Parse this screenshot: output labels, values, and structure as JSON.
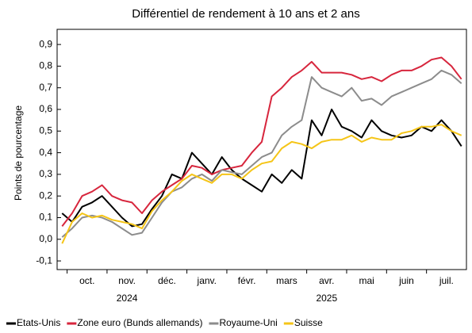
{
  "chart_data": {
    "type": "line",
    "title": "Différentiel de rendement à 10 ans et 2 ans",
    "ylabel": "Points de pourcentage",
    "categories": [
      null,
      null,
      "oct.",
      null,
      null,
      null,
      "nov.",
      null,
      null,
      null,
      "déc.",
      null,
      null,
      null,
      "janv.",
      null,
      null,
      null,
      "févr.",
      null,
      null,
      null,
      "mars",
      null,
      null,
      null,
      "avr.",
      null,
      null,
      null,
      "mai",
      null,
      null,
      null,
      "juin",
      null,
      null,
      null,
      "juil.",
      null,
      null
    ],
    "years": [
      "2024",
      "2025"
    ],
    "ylim": [
      -0.14,
      0.97
    ],
    "yticks": [
      {
        "value": -0.1,
        "label": "-0,1"
      },
      {
        "value": 0,
        "label": "0,0"
      },
      {
        "value": 0.1,
        "label": "0,1"
      },
      {
        "value": 0.2,
        "label": "0,2"
      },
      {
        "value": 0.3,
        "label": "0,3"
      },
      {
        "value": 0.4,
        "label": "0,4"
      },
      {
        "value": 0.5,
        "label": "0,5"
      },
      {
        "value": 0.6,
        "label": "0,6"
      },
      {
        "value": 0.7,
        "label": "0,7"
      },
      {
        "value": 0.8,
        "label": "0,8"
      },
      {
        "value": 0.9,
        "label": "0,9"
      }
    ],
    "grid": false,
    "legend": "bottom",
    "series": [
      {
        "name": "Etats-Unis",
        "color": "#000000",
        "values": [
          0.12,
          0.08,
          0.15,
          0.17,
          0.2,
          0.15,
          0.1,
          0.06,
          0.07,
          0.14,
          0.2,
          0.3,
          0.28,
          0.4,
          0.35,
          0.3,
          0.38,
          0.32,
          0.28,
          0.25,
          0.22,
          0.3,
          0.26,
          0.32,
          0.28,
          0.55,
          0.48,
          0.6,
          0.52,
          0.5,
          0.47,
          0.55,
          0.5,
          0.48,
          0.47,
          0.48,
          0.52,
          0.5,
          0.55,
          0.5,
          0.43
        ]
      },
      {
        "name": "Zone euro (Bunds allemands)",
        "color": "#d7263d",
        "values": [
          0.06,
          0.12,
          0.2,
          0.22,
          0.25,
          0.2,
          0.18,
          0.17,
          0.12,
          0.18,
          0.22,
          0.25,
          0.28,
          0.34,
          0.33,
          0.3,
          0.32,
          0.33,
          0.34,
          0.4,
          0.45,
          0.66,
          0.7,
          0.75,
          0.78,
          0.82,
          0.77,
          0.77,
          0.77,
          0.76,
          0.74,
          0.75,
          0.73,
          0.76,
          0.78,
          0.78,
          0.8,
          0.83,
          0.84,
          0.8,
          0.74
        ]
      },
      {
        "name": "Royaume-Uni",
        "color": "#8c8c8c",
        "values": [
          0.01,
          0.05,
          0.1,
          0.11,
          0.1,
          0.08,
          0.05,
          0.02,
          0.03,
          0.1,
          0.17,
          0.22,
          0.24,
          0.28,
          0.3,
          0.27,
          0.32,
          0.31,
          0.3,
          0.34,
          0.38,
          0.4,
          0.48,
          0.52,
          0.55,
          0.75,
          0.7,
          0.68,
          0.66,
          0.7,
          0.64,
          0.65,
          0.62,
          0.66,
          0.68,
          0.7,
          0.72,
          0.74,
          0.78,
          0.76,
          0.72
        ]
      },
      {
        "name": "Suisse",
        "color": "#f5c518",
        "values": [
          -0.02,
          0.08,
          0.12,
          0.1,
          0.11,
          0.09,
          0.08,
          0.07,
          0.05,
          0.13,
          0.18,
          0.22,
          0.27,
          0.3,
          0.28,
          0.26,
          0.3,
          0.3,
          0.28,
          0.32,
          0.35,
          0.36,
          0.42,
          0.45,
          0.44,
          0.42,
          0.45,
          0.46,
          0.46,
          0.48,
          0.45,
          0.47,
          0.46,
          0.46,
          0.49,
          0.5,
          0.52,
          0.52,
          0.53,
          0.5,
          0.48
        ]
      }
    ]
  }
}
